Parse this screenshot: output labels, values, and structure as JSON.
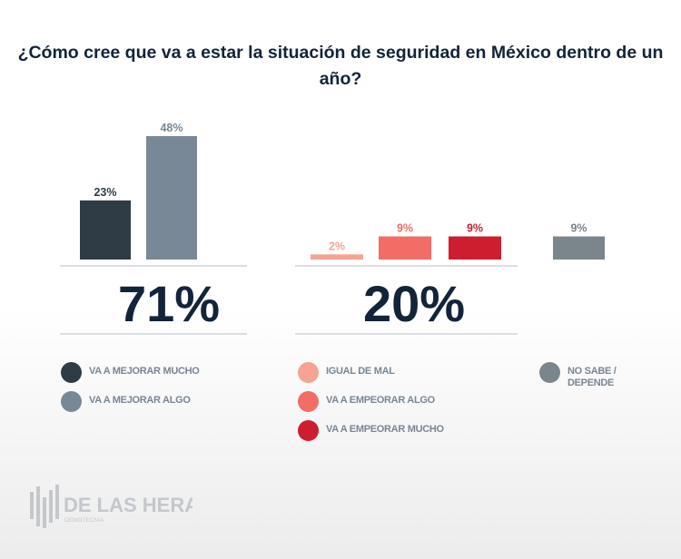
{
  "chart_data": {
    "type": "bar",
    "title": "¿Cómo cree que va a estar la situación de seguridad en México dentro de un año?",
    "ylim": [
      0,
      50
    ],
    "series": [
      {
        "name": "VA A MEJORAR MUCHO",
        "value": 23,
        "label": "23%",
        "color": "#2f3c46",
        "label_color": "#2f3c46"
      },
      {
        "name": "VA A MEJORAR ALGO",
        "value": 48,
        "label": "48%",
        "color": "#788896",
        "label_color": "#788896"
      },
      {
        "name": "IGUAL DE MAL",
        "value": 2,
        "label": "2%",
        "color": "#f6a393",
        "label_color": "#f6a393"
      },
      {
        "name": "VA A EMPEORAR ALGO",
        "value": 9,
        "label": "9%",
        "color": "#f16d66",
        "label_color": "#f16d66"
      },
      {
        "name": "VA A EMPEORAR MUCHO",
        "value": 9,
        "label": "9%",
        "color": "#cd1e2f",
        "label_color": "#cd1e2f"
      },
      {
        "name": "NO SABE / DEPENDE",
        "value": 9,
        "label": "9%",
        "color": "#7b858c",
        "label_color": "#7b858c"
      }
    ],
    "groups": [
      {
        "total": "71%"
      },
      {
        "total": "20%"
      }
    ],
    "legend_placement": "bottom"
  },
  "legend": [
    "VA A MEJORAR MUCHO",
    "VA A MEJORAR ALGO",
    "IGUAL DE MAL",
    "VA A EMPEORAR ALGO",
    "VA A EMPEORAR MUCHO",
    "NO SABE /\nDEPENDE"
  ],
  "logo": {
    "name": "DE LAS HERAS",
    "sub": "DEMOTECNIA"
  }
}
